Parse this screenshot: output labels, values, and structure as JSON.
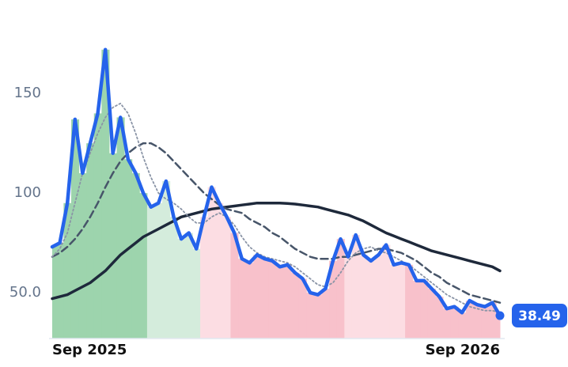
{
  "chart_data": {
    "type": "line",
    "categories": [
      "Sep 2025",
      null,
      null,
      null,
      null,
      null,
      null,
      null,
      null,
      null,
      null,
      null,
      null,
      null,
      null,
      null,
      null,
      null,
      null,
      null,
      null,
      null,
      null,
      null,
      null,
      null,
      null,
      null,
      null,
      null,
      null,
      null,
      null,
      null,
      null,
      null,
      null,
      null,
      null,
      null,
      null,
      null,
      null,
      null,
      null,
      null,
      null,
      null,
      null,
      null,
      null,
      null,
      null,
      null,
      null,
      null,
      null,
      null,
      null,
      "Sep 2026"
    ],
    "ylim": [
      27,
      185
    ],
    "yticks": [
      {
        "value": 50,
        "label": "50.0"
      },
      100,
      150
    ],
    "grid": false,
    "fill_colors": [
      "#9dd4ad",
      "#9dd4ad",
      "#9dd4ad",
      "#9dd4ad",
      "#9dd4ad",
      "#9dd4ad",
      "#9dd4ad",
      "#9dd4ad",
      "#9dd4ad",
      "#9dd4ad",
      "#9dd4ad",
      "#9dd4ad",
      "#9dd4ad",
      "#d4ecdc",
      "#d4ecdc",
      "#d4ecdc",
      "#d4ecdc",
      "#d4ecdc",
      "#d4ecdc",
      "#d4ecdc",
      "#fcdde3",
      "#fcdde3",
      "#fcdde3",
      "#fcdde3",
      "#f8c1cb",
      "#f8c1cb",
      "#f8c1cb",
      "#f8c1cb",
      "#f8c1cb",
      "#f8c1cb",
      "#f8c1cb",
      "#f8c1cb",
      "#f8c1cb",
      "#f8c1cb",
      "#f8c1cb",
      "#f8c1cb",
      "#f8c1cb",
      "#f8c1cb",
      "#f8c1cb",
      "#fcdde3",
      "#fcdde3",
      "#fcdde3",
      "#fcdde3",
      "#fcdde3",
      "#fcdde3",
      "#fcdde3",
      "#fcdde3",
      "#f8c1cb",
      "#f8c1cb",
      "#f8c1cb",
      "#f8c1cb",
      "#f8c1cb",
      "#f8c1cb",
      "#f8c1cb",
      "#f8c1cb",
      "#f8c1cb",
      "#f8c1cb",
      "#f8c1cb",
      "#f8c1cb",
      "#f8c1cb"
    ],
    "series": [
      {
        "color": "#1e293b",
        "dash": "solid",
        "values": [
          47,
          48,
          49,
          51,
          53,
          55,
          58,
          61,
          65,
          69,
          72,
          75,
          78,
          80,
          82,
          84,
          86,
          88,
          89,
          90,
          91,
          92,
          92.5,
          93,
          93.5,
          94,
          94.5,
          95,
          95,
          95,
          95,
          94.8,
          94.5,
          94,
          93.5,
          93,
          92,
          91,
          90,
          89,
          87.5,
          86,
          84,
          82,
          80,
          78.5,
          77,
          75.5,
          74,
          72.5,
          71,
          70,
          69,
          68,
          67,
          66,
          65,
          64,
          63,
          61
        ]
      },
      {
        "color": "#475569",
        "dash": "dashed",
        "values": [
          68,
          70,
          73,
          77,
          82,
          88,
          95,
          103,
          110,
          116,
          120,
          123,
          125,
          125,
          123,
          120,
          116,
          112,
          108,
          104,
          100,
          97,
          94,
          92,
          91,
          90,
          87,
          85,
          83,
          80,
          78,
          75,
          72,
          70,
          68,
          67,
          67,
          67,
          68,
          68,
          69,
          70,
          71,
          72,
          72,
          71,
          70,
          68,
          66,
          63,
          60,
          58,
          55,
          53,
          51,
          49,
          48,
          47,
          46,
          45
        ]
      },
      {
        "color": "#8a94a6",
        "dash": "dotted",
        "values": [
          68,
          72,
          80,
          95,
          110,
          120,
          130,
          138,
          143,
          145,
          140,
          130,
          118,
          108,
          100,
          97,
          95,
          92,
          88,
          85,
          85,
          88,
          90,
          88,
          84,
          78,
          73,
          70,
          68,
          67,
          66,
          65,
          63,
          60,
          57,
          54,
          53,
          55,
          60,
          66,
          70,
          72,
          73,
          71,
          70,
          68,
          66,
          64,
          61,
          58,
          55,
          52,
          49,
          47,
          45,
          43,
          42,
          41,
          41,
          40
        ]
      },
      {
        "color": "#2563eb",
        "dash": "solid",
        "values": [
          73,
          75,
          95,
          137,
          110,
          125,
          140,
          172,
          120,
          138,
          117,
          110,
          100,
          93,
          95,
          106,
          88,
          77,
          80,
          72,
          88,
          103,
          95,
          88,
          80,
          67,
          65,
          69,
          67,
          66,
          63,
          64,
          60,
          57,
          50,
          49,
          52,
          66,
          77,
          68,
          79,
          69,
          66,
          69,
          74,
          64,
          65,
          64,
          56,
          56,
          52,
          48,
          42,
          43,
          40,
          46,
          44,
          43,
          45,
          38.49
        ]
      }
    ]
  }
}
